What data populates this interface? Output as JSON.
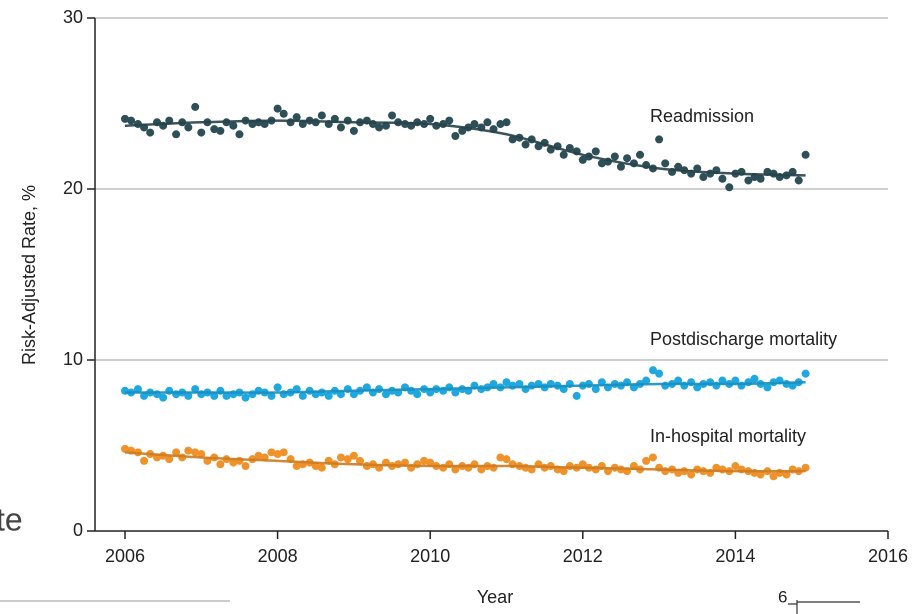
{
  "chart_data": {
    "type": "scatter",
    "xlabel": "Year",
    "ylabel": "Risk-Adjusted Rate, %",
    "xlim": [
      2006,
      2016
    ],
    "ylim": [
      0,
      30
    ],
    "xticks": [
      2006,
      2008,
      2010,
      2012,
      2014,
      2016
    ],
    "yticks": [
      0,
      10,
      20,
      30
    ],
    "grid": true,
    "x": [
      2006,
      2006.08,
      2006.17,
      2006.25,
      2006.33,
      2006.42,
      2006.5,
      2006.58,
      2006.67,
      2006.75,
      2006.83,
      2006.92,
      2007,
      2007.08,
      2007.17,
      2007.25,
      2007.33,
      2007.42,
      2007.5,
      2007.58,
      2007.67,
      2007.75,
      2007.83,
      2007.92,
      2008,
      2008.08,
      2008.17,
      2008.25,
      2008.33,
      2008.42,
      2008.5,
      2008.58,
      2008.67,
      2008.75,
      2008.83,
      2008.92,
      2009,
      2009.08,
      2009.17,
      2009.25,
      2009.33,
      2009.42,
      2009.5,
      2009.58,
      2009.67,
      2009.75,
      2009.83,
      2009.92,
      2010,
      2010.08,
      2010.17,
      2010.25,
      2010.33,
      2010.42,
      2010.5,
      2010.58,
      2010.67,
      2010.75,
      2010.83,
      2010.92,
      2011,
      2011.08,
      2011.17,
      2011.25,
      2011.33,
      2011.42,
      2011.5,
      2011.58,
      2011.67,
      2011.75,
      2011.83,
      2011.92,
      2012,
      2012.08,
      2012.17,
      2012.25,
      2012.33,
      2012.42,
      2012.5,
      2012.58,
      2012.67,
      2012.75,
      2012.83,
      2012.92,
      2013,
      2013.08,
      2013.17,
      2013.25,
      2013.33,
      2013.42,
      2013.5,
      2013.58,
      2013.67,
      2013.75,
      2013.83,
      2013.92,
      2014,
      2014.08,
      2014.17,
      2014.25,
      2014.33,
      2014.42,
      2014.5,
      2014.58,
      2014.67,
      2014.75,
      2014.83,
      2014.92
    ],
    "series": [
      {
        "name": "Readmission",
        "color": "#2e4f57",
        "values": [
          24.1,
          24.0,
          23.8,
          23.6,
          23.3,
          23.9,
          23.7,
          24.0,
          23.2,
          23.9,
          23.6,
          24.8,
          23.3,
          23.9,
          23.5,
          23.4,
          23.9,
          23.7,
          23.2,
          24.0,
          23.8,
          23.9,
          23.8,
          24.0,
          24.7,
          24.4,
          23.9,
          24.2,
          23.8,
          24.0,
          23.9,
          24.3,
          23.8,
          24.1,
          23.6,
          24.0,
          23.4,
          23.9,
          24.0,
          23.8,
          23.6,
          23.7,
          24.3,
          23.9,
          23.8,
          23.7,
          23.9,
          23.8,
          24.1,
          23.7,
          23.8,
          24.0,
          23.1,
          23.4,
          23.6,
          23.8,
          23.6,
          23.9,
          23.5,
          23.8,
          23.9,
          22.9,
          23.0,
          22.6,
          22.9,
          22.5,
          22.7,
          22.3,
          22.5,
          22.0,
          22.4,
          22.2,
          21.7,
          21.9,
          22.2,
          21.5,
          21.6,
          21.9,
          21.3,
          21.8,
          21.5,
          22.0,
          21.4,
          21.2,
          22.9,
          21.5,
          21.0,
          21.3,
          21.1,
          20.9,
          21.2,
          20.7,
          20.9,
          21.1,
          20.6,
          20.1,
          20.9,
          21.0,
          20.5,
          20.7,
          20.6,
          21.0,
          20.9,
          20.7,
          20.8,
          21.0,
          20.5,
          22.0
        ],
        "trend": {
          "x": [
            2006,
            2007,
            2008,
            2009,
            2010,
            2011,
            2012,
            2013,
            2014,
            2014.92
          ],
          "values": [
            23.7,
            23.9,
            24.0,
            23.9,
            23.8,
            23.2,
            22.0,
            21.2,
            20.9,
            20.8
          ]
        }
      },
      {
        "name": "Postdischarge mortality",
        "color": "#1fa8e0",
        "values": [
          8.2,
          8.1,
          8.3,
          7.9,
          8.1,
          8.0,
          7.8,
          8.2,
          8.0,
          8.1,
          7.9,
          8.3,
          8.0,
          8.1,
          7.9,
          8.2,
          7.9,
          8.0,
          8.1,
          7.8,
          8.0,
          8.2,
          8.1,
          7.9,
          8.4,
          8.0,
          8.1,
          8.3,
          7.9,
          8.2,
          8.0,
          8.1,
          7.9,
          8.2,
          8.0,
          8.3,
          8.0,
          8.2,
          8.4,
          8.1,
          8.3,
          8.0,
          8.2,
          8.1,
          8.4,
          8.2,
          8.0,
          8.3,
          8.1,
          8.3,
          8.2,
          8.4,
          8.1,
          8.3,
          8.2,
          8.5,
          8.3,
          8.4,
          8.6,
          8.4,
          8.7,
          8.5,
          8.6,
          8.3,
          8.5,
          8.6,
          8.4,
          8.6,
          8.5,
          8.3,
          8.6,
          7.9,
          8.5,
          8.6,
          8.3,
          8.7,
          8.4,
          8.6,
          8.5,
          8.7,
          8.4,
          8.6,
          8.8,
          9.4,
          9.2,
          8.5,
          8.6,
          8.8,
          8.5,
          8.7,
          8.4,
          8.6,
          8.7,
          8.5,
          8.8,
          8.6,
          8.8,
          8.5,
          8.7,
          8.9,
          8.6,
          8.4,
          8.7,
          8.8,
          8.6,
          8.5,
          8.7,
          9.2
        ],
        "trend": {
          "x": [
            2006,
            2007,
            2008,
            2009,
            2010,
            2011,
            2012,
            2013,
            2014,
            2014.92
          ],
          "values": [
            8.1,
            8.1,
            8.1,
            8.2,
            8.3,
            8.4,
            8.5,
            8.6,
            8.6,
            8.7
          ]
        }
      },
      {
        "name": "In-hospital mortality",
        "color": "#f0922a",
        "values": [
          4.8,
          4.7,
          4.6,
          4.1,
          4.5,
          4.3,
          4.4,
          4.2,
          4.6,
          4.3,
          4.7,
          4.6,
          4.5,
          4.1,
          4.3,
          3.9,
          4.2,
          4.0,
          4.1,
          3.8,
          4.2,
          4.4,
          4.3,
          4.6,
          4.5,
          4.6,
          4.2,
          3.8,
          3.9,
          4.0,
          3.8,
          3.7,
          4.1,
          3.9,
          4.3,
          4.2,
          4.4,
          4.1,
          3.8,
          3.9,
          3.7,
          4.0,
          3.8,
          3.9,
          4.0,
          3.7,
          3.9,
          4.1,
          4.0,
          3.8,
          3.7,
          3.9,
          3.6,
          3.8,
          3.7,
          3.9,
          3.6,
          3.8,
          3.7,
          4.3,
          4.2,
          3.9,
          3.8,
          3.7,
          3.6,
          3.9,
          3.7,
          3.8,
          3.6,
          3.5,
          3.8,
          3.7,
          3.9,
          3.7,
          3.6,
          3.8,
          3.5,
          3.7,
          3.6,
          3.5,
          3.8,
          3.6,
          4.1,
          4.3,
          3.7,
          3.5,
          3.6,
          3.4,
          3.5,
          3.3,
          3.6,
          3.5,
          3.4,
          3.7,
          3.6,
          3.5,
          3.8,
          3.6,
          3.5,
          3.4,
          3.3,
          3.5,
          3.2,
          3.4,
          3.3,
          3.6,
          3.5,
          3.7
        ],
        "trend": {
          "x": [
            2006,
            2007,
            2008,
            2009,
            2010,
            2011,
            2012,
            2013,
            2014,
            2014.92
          ],
          "values": [
            4.6,
            4.3,
            4.1,
            3.9,
            3.8,
            3.8,
            3.7,
            3.6,
            3.5,
            3.5
          ]
        }
      }
    ],
    "clipped_text": [
      "te",
      "6"
    ]
  }
}
